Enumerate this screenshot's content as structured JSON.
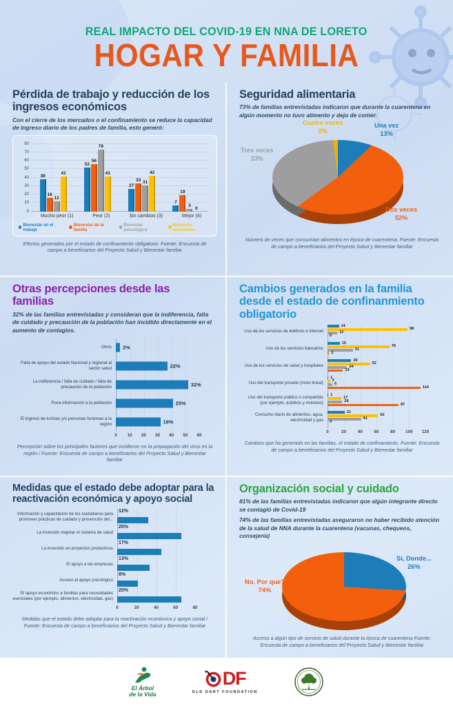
{
  "header": {
    "supertitle": "REAL IMPACTO DEL COVID-19 EN NNA DE LORETO",
    "title": "HOGAR Y FAMILIA"
  },
  "sections": {
    "perdida": {
      "title": "Pérdida de trabajo y reducción de los ingresos económicos",
      "subtitle": "Con el cierre de los mercados o el confinamiento se reduce la capacidad de ingreso diario de los padres de familia, esto generó:",
      "caption": "Efectos generados por el estado de confinamiento obligatorio. Fuente: Encuesta de campo a beneficiarios del Proyecto Salud y Bienestar familiar"
    },
    "seguridad": {
      "title": "Seguridad alimentaria",
      "subtitle": "73% de familias entrevistadas indicaron que durante la cuarentena en algún momento no tuvo alimento y dejo de comer.",
      "caption": "Número de veces que consumían alimentos en época de cuarentena. Fuente: Encuesta de campo a beneficiarios del Proyecto Salud y Bienestar familiar"
    },
    "percepciones": {
      "title": "Otras percepciones desde las familias",
      "subtitle": "32% de las familias entrevistadas y consideran que la indiferencia, falta de cuidado y precaución de la población han incidido directamente en el aumento de contagios.",
      "caption": "Percepción sobre los principales factores que incidieron en la propagación del virus en la región / Fuente: Encuesta de campo a beneficiarios del Proyecto Salud y Bienestar familiar"
    },
    "cambios": {
      "title": "Cambios generados en la familia desde el estado de confinanmiento obligatorio",
      "caption": "Cambios que ha generado en las familias, el estado de confinamiento. Fuente: Encuesta de campo a beneficiarios del Proyecto Salud y Bienestar familiar"
    },
    "medidas": {
      "title": "Medidas que el estado debe adoptar para la reactivación económica y apoyo social",
      "caption": "Medidas que el estado debe adoptar para la reactivación económica y apoyo social / Fuente: Encuesta de campo a beneficiarios del Proyecto Salud y Bienestar familiar"
    },
    "organizacion": {
      "title": "Organización social y cuidado",
      "p1": "81% de las familias entrevistadas indicaron que algún integrante directo se contagió de Covid-19",
      "p2": "74% de las familias entrevistadas aseguraron no haber recibido atención de la salud de NNA durante la cuarentena (vacunas, chequeos, consejería)",
      "caption": "Acceso a algún tipo de servicio de salud durante la época de cuarentena Fuente: Encuesta de campo a beneficiarios del Proyecto Salud y Bienestar familiar"
    }
  },
  "chart_data": [
    {
      "id": "bienestar",
      "type": "bar",
      "categories": [
        "Mucho peor (1)",
        "Peor (2)",
        "Sin cambios (3)",
        "Mejor (4)"
      ],
      "series": [
        {
          "name": "Bienestar en el trabajo",
          "color": "#1d7db9",
          "values": [
            38,
            52,
            27,
            7
          ]
        },
        {
          "name": "Bienestar de la familia",
          "color": "#f2600d",
          "values": [
            16,
            56,
            33,
            19
          ]
        },
        {
          "name": "Bienestar psicológico",
          "color": "#9e9e9e",
          "values": [
            12,
            78,
            31,
            3
          ]
        },
        {
          "name": "Bienestar económico",
          "color": "#ffc000",
          "values": [
            41,
            41,
            42,
            0
          ]
        }
      ],
      "ylim": [
        0,
        80
      ],
      "yticks": [
        0,
        10,
        20,
        30,
        40,
        50,
        60,
        70,
        80
      ],
      "grid": true,
      "legend_position": "bottom"
    },
    {
      "id": "seguridad_pie",
      "type": "pie",
      "slices": [
        {
          "label": "Una vez",
          "pct": 13,
          "pct_label": "13%",
          "color": "#1d7db9"
        },
        {
          "label": "Dos veces",
          "pct": 52,
          "pct_label": "52%",
          "color": "#f2600d"
        },
        {
          "label": "Tres veces",
          "pct": 33,
          "pct_label": "33%",
          "color": "#9e9e9e"
        },
        {
          "label": "Cuatro veces",
          "pct": 2,
          "pct_label": "2%",
          "color": "#f0b400"
        }
      ]
    },
    {
      "id": "percepciones",
      "type": "bar",
      "orientation": "horizontal",
      "categories": [
        "Otros",
        "Falta de apoyo del estado Nacional y regional al sector salud",
        "La indiferencia / falta de cuidado / falta de precaución de la población",
        "Poca información a la población",
        "El ingreso de turistas y/o personas foráneas a la región"
      ],
      "values": [
        3,
        37,
        52,
        41,
        32
      ],
      "labels": [
        "2%",
        "22%",
        "32%",
        "25%",
        "19%"
      ],
      "color": "#1d7db9",
      "xlim": [
        0,
        60
      ],
      "xticks": [
        0,
        10,
        20,
        30,
        40,
        50,
        60
      ],
      "grid": true
    },
    {
      "id": "cambios",
      "type": "bar",
      "orientation": "horizontal",
      "grouped": true,
      "categories": [
        "Uso de los servicios de teléfono e internet",
        "Uso de los servicios bancarios",
        "Uso de los servicios de salud y hospitales",
        "Uso del transporte privado (moto lineal)",
        "Uso del transporte público o compartido (por ejemplo, autobús y mototaxi)",
        "Consumo diario de alimentos, agua, electricidad y gas"
      ],
      "series": [
        {
          "color": "#1d7db9",
          "values": [
            14,
            15,
            29,
            1,
            1,
            21
          ]
        },
        {
          "color": "#ffc000",
          "values": [
            98,
            76,
            52,
            3,
            17,
            62
          ]
        },
        {
          "color": "#9e9e9e",
          "values": [
            12,
            31,
            24,
            6,
            18,
            41
          ]
        },
        {
          "color": "#f2600d",
          "values": [
            0,
            2,
            19,
            114,
            87,
            0
          ]
        }
      ],
      "xlim": [
        0,
        120
      ],
      "xticks": [
        0,
        20,
        40,
        60,
        80,
        100,
        120
      ],
      "grid": true
    },
    {
      "id": "medidas",
      "type": "bar",
      "orientation": "horizontal",
      "categories": [
        "Información y capacitación de los ciudadanos para promover prácticas de cuidado y prevención del...",
        "La inversión mejorar el sistema de salud",
        "La inversión en proyectos productivos",
        "El apoyo a las empresas",
        "Acceso al apoyo psicológico",
        "El apoyo económico a familias para necesidades esenciales (por ejemplo, alimentos, electricidad, gas)"
      ],
      "values": [
        32,
        66,
        45,
        33,
        21,
        66
      ],
      "labels": [
        "12%",
        "25%",
        "17%",
        "13%",
        "8%",
        "25%"
      ],
      "color": "#1d7db9",
      "xlim": [
        0,
        80
      ],
      "xticks": [
        0,
        20,
        40,
        60,
        80
      ],
      "grid": true
    },
    {
      "id": "organizacion_pie",
      "type": "pie",
      "slices": [
        {
          "label": "Sí, Donde...",
          "pct": 26,
          "pct_label": "26%",
          "color": "#1d7db9"
        },
        {
          "label": "No. Por que?",
          "pct": 74,
          "pct_label": "74%",
          "color": "#f2600d"
        }
      ]
    }
  ],
  "footer": {
    "logos": [
      {
        "line1": "El Árbol",
        "line2": "de la Vida"
      },
      {
        "text": "ODF",
        "letters_shown": "DF",
        "subtext": "OLD DART FOUNDATION"
      }
    ]
  }
}
